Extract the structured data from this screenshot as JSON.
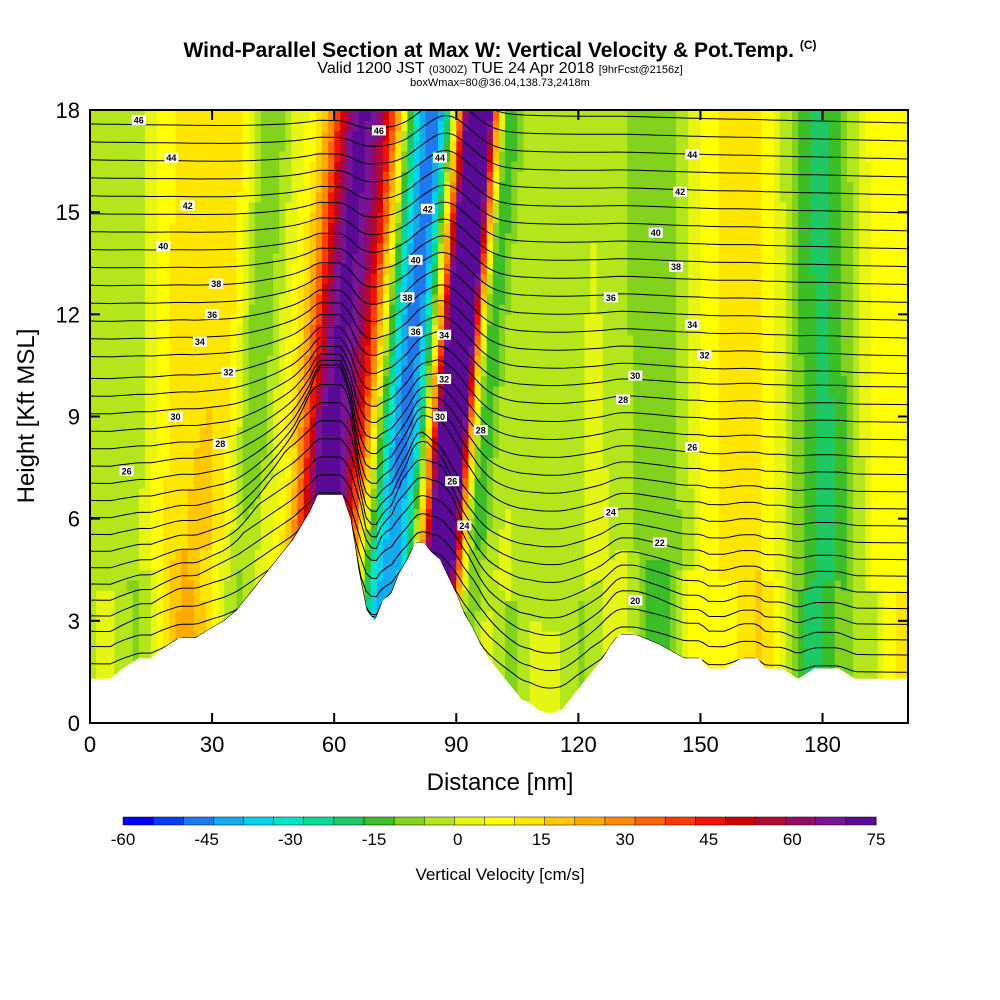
{
  "header": {
    "title": "Wind-Parallel Section at Max W: Vertical Velocity & Pot.Temp.",
    "copyright": "(C)",
    "subtitle_valid": "Valid 1200 JST",
    "subtitle_utc": "(0300Z)",
    "subtitle_date": "TUE 24 Apr 2018",
    "subtitle_fcst": "[9hrFcst@2156z]",
    "subtitle_box": "boxWmax=80@36.04,138.73,2418m"
  },
  "chart_data": {
    "type": "heatmap",
    "title": "Wind-Parallel Section at Max W: Vertical Velocity & Pot.Temp.",
    "xlabel": "Distance [nm]",
    "ylabel": "Height [Kft MSL]",
    "xlim": [
      0,
      201
    ],
    "ylim": [
      0,
      18
    ],
    "xticks": [
      0,
      30,
      60,
      90,
      120,
      150,
      180
    ],
    "yticks": [
      0,
      3,
      6,
      9,
      12,
      15,
      18
    ],
    "colorbar": {
      "title": "Vertical Velocity [cm/s]",
      "range": [
        -60,
        75
      ],
      "tick_values": [
        -60,
        -45,
        -30,
        -15,
        0,
        15,
        30,
        45,
        60,
        75
      ],
      "colors": [
        "#0000ff",
        "#0a3cf5",
        "#1e78f0",
        "#14aaf0",
        "#00d2f0",
        "#00e6c8",
        "#00dc96",
        "#1ec864",
        "#3cbe28",
        "#82d21e",
        "#b4e61e",
        "#e6f514",
        "#ffff00",
        "#ffe600",
        "#ffc800",
        "#ffaa00",
        "#ff8c00",
        "#ff6400",
        "#ff3c00",
        "#f01400",
        "#d20000",
        "#b40a32",
        "#960a64",
        "#781496",
        "#5a0a96"
      ]
    },
    "velocity_bands": [
      {
        "x_center": 59,
        "width": 7,
        "w": 65,
        "tilt": 0.5
      },
      {
        "x_center": 67,
        "width": 5,
        "w": 35,
        "tilt": 0.5
      },
      {
        "x_center": 72,
        "width": 6,
        "w": -20,
        "tilt": 0.45
      },
      {
        "x_center": 79,
        "width": 6,
        "w": -45,
        "tilt": 0.45
      },
      {
        "x_center": 88,
        "width": 5,
        "w": 75,
        "tilt": 0.45
      },
      {
        "x_center": 91,
        "width": 4,
        "w": 45,
        "tilt": 0.45
      },
      {
        "x_center": 96,
        "width": 4,
        "w": -25,
        "tilt": 0.4
      },
      {
        "x_center": 40,
        "width": 5,
        "w": -18,
        "tilt": 0.3
      },
      {
        "x_center": 33,
        "width": 8,
        "w": 10,
        "tilt": 0.3
      },
      {
        "x_center": 10,
        "width": 10,
        "w": -12,
        "tilt": 0.1
      },
      {
        "x_center": 20,
        "width": 10,
        "w": 12,
        "tilt": 0.05
      },
      {
        "x_center": 112,
        "width": 12,
        "w": -6,
        "tilt": 0.0
      },
      {
        "x_center": 140,
        "width": 10,
        "w": -14,
        "tilt": -0.1
      },
      {
        "x_center": 160,
        "width": 12,
        "w": 12,
        "tilt": 0.1
      },
      {
        "x_center": 180,
        "width": 10,
        "w": -22,
        "tilt": -0.1
      },
      {
        "x_center": 195,
        "width": 8,
        "w": 8,
        "tilt": 0.0
      }
    ],
    "terrain_profile": {
      "x": [
        0,
        5,
        8,
        12,
        15,
        18,
        22,
        26,
        30,
        33,
        36,
        38,
        40,
        42,
        44,
        46,
        48,
        50,
        52,
        54,
        56,
        58,
        60,
        62,
        64,
        65,
        66,
        68,
        70,
        72,
        74,
        76,
        78,
        80,
        82,
        84,
        86,
        88,
        90,
        92,
        94,
        96,
        98,
        100,
        102,
        104,
        106,
        108,
        110,
        112,
        114,
        116,
        118,
        120,
        122,
        124,
        126,
        128,
        130,
        132,
        134,
        140,
        146,
        150,
        152,
        156,
        160,
        164,
        166,
        170,
        174,
        178,
        180,
        184,
        188,
        192,
        196,
        201
      ],
      "height": [
        1.3,
        1.3,
        1.6,
        1.9,
        1.9,
        2.2,
        2.5,
        2.5,
        2.8,
        3.0,
        3.3,
        3.6,
        3.9,
        4.2,
        4.5,
        4.8,
        5.1,
        5.4,
        5.8,
        6.2,
        6.7,
        6.7,
        6.7,
        6.7,
        6.0,
        5.3,
        4.5,
        3.3,
        3.0,
        3.6,
        3.8,
        4.4,
        4.8,
        5.3,
        5.3,
        5.0,
        4.8,
        4.3,
        3.8,
        3.2,
        2.8,
        2.3,
        1.9,
        1.6,
        1.3,
        1.0,
        0.7,
        0.6,
        0.4,
        0.3,
        0.3,
        0.4,
        0.7,
        1.0,
        1.3,
        1.6,
        1.9,
        2.3,
        2.6,
        2.6,
        2.6,
        2.3,
        1.9,
        1.9,
        1.6,
        1.6,
        1.9,
        1.9,
        1.6,
        1.6,
        1.3,
        1.6,
        1.6,
        1.6,
        1.3,
        1.3,
        1.3,
        1.3
      ]
    },
    "isentropes_labels": [
      {
        "label": "46",
        "x": 12,
        "y": 17.7
      },
      {
        "label": "44",
        "x": 20,
        "y": 16.6
      },
      {
        "label": "42",
        "x": 24,
        "y": 15.2
      },
      {
        "label": "40",
        "x": 18,
        "y": 14.0
      },
      {
        "label": "38",
        "x": 31,
        "y": 12.9
      },
      {
        "label": "36",
        "x": 30,
        "y": 12.0
      },
      {
        "label": "34",
        "x": 27,
        "y": 11.2
      },
      {
        "label": "32",
        "x": 34,
        "y": 10.3
      },
      {
        "label": "30",
        "x": 21,
        "y": 9.0
      },
      {
        "label": "28",
        "x": 32,
        "y": 8.2
      },
      {
        "label": "26",
        "x": 9,
        "y": 7.4
      },
      {
        "label": "46",
        "x": 71,
        "y": 17.4
      },
      {
        "label": "44",
        "x": 86,
        "y": 16.6
      },
      {
        "label": "42",
        "x": 83,
        "y": 15.1
      },
      {
        "label": "40",
        "x": 80,
        "y": 13.6
      },
      {
        "label": "38",
        "x": 78,
        "y": 12.5
      },
      {
        "label": "36",
        "x": 80,
        "y": 11.5
      },
      {
        "label": "34",
        "x": 87,
        "y": 11.4
      },
      {
        "label": "32",
        "x": 87,
        "y": 10.1
      },
      {
        "label": "30",
        "x": 86,
        "y": 9.0
      },
      {
        "label": "28",
        "x": 96,
        "y": 8.6
      },
      {
        "label": "26",
        "x": 89,
        "y": 7.1
      },
      {
        "label": "24",
        "x": 92,
        "y": 5.8
      },
      {
        "label": "44",
        "x": 148,
        "y": 16.7
      },
      {
        "label": "42",
        "x": 145,
        "y": 15.6
      },
      {
        "label": "40",
        "x": 139,
        "y": 14.4
      },
      {
        "label": "38",
        "x": 144,
        "y": 13.4
      },
      {
        "label": "36",
        "x": 128,
        "y": 12.5
      },
      {
        "label": "34",
        "x": 148,
        "y": 11.7
      },
      {
        "label": "32",
        "x": 151,
        "y": 10.8
      },
      {
        "label": "30",
        "x": 134,
        "y": 10.2
      },
      {
        "label": "28",
        "x": 131,
        "y": 9.5
      },
      {
        "label": "26",
        "x": 148,
        "y": 8.1
      },
      {
        "label": "24",
        "x": 128,
        "y": 6.2
      },
      {
        "label": "22",
        "x": 140,
        "y": 5.3
      },
      {
        "label": "20",
        "x": 134,
        "y": 3.6
      }
    ]
  }
}
